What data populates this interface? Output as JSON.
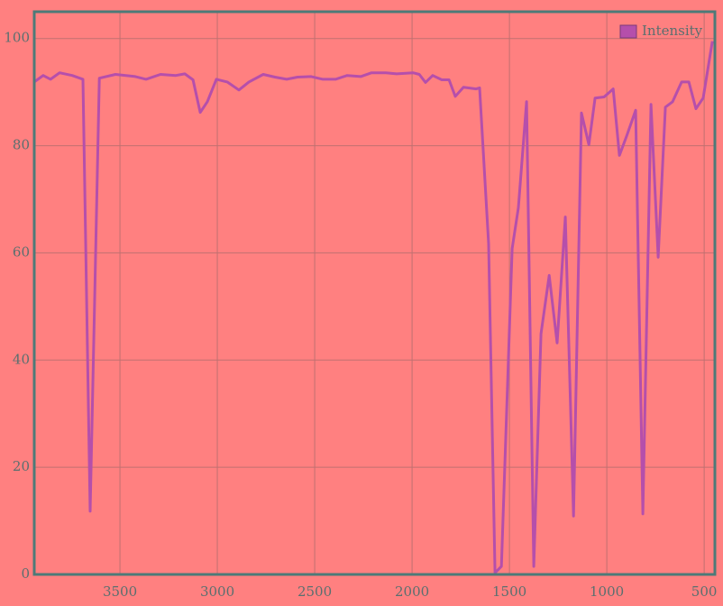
{
  "chart_data": {
    "type": "line",
    "x": [
      3940,
      3894,
      3856,
      3810,
      3745,
      3690,
      3653,
      3606,
      3523,
      3421,
      3366,
      3292,
      3213,
      3167,
      3125,
      3088,
      3051,
      3005,
      2949,
      2889,
      2838,
      2764,
      2704,
      2644,
      2588,
      2518,
      2458,
      2393,
      2333,
      2264,
      2208,
      2134,
      2079,
      1995,
      1963,
      1931,
      1894,
      1847,
      1810,
      1778,
      1736,
      1671,
      1653,
      1607,
      1574,
      1541,
      1486,
      1454,
      1412,
      1375,
      1338,
      1296,
      1255,
      1213,
      1171,
      1130,
      1092,
      1060,
      1014,
      967,
      935,
      898,
      852,
      815,
      773,
      736,
      699,
      662,
      616,
      579,
      542,
      505,
      458
    ],
    "series": [
      {
        "name": "Intensity",
        "color": "#b54fab",
        "values": [
          91.9,
          93.1,
          92.4,
          93.6,
          93.1,
          92.4,
          11.8,
          92.6,
          93.3,
          92.9,
          92.4,
          93.3,
          93.1,
          93.4,
          92.3,
          86.2,
          88.2,
          92.4,
          91.9,
          90.4,
          91.9,
          93.3,
          92.8,
          92.4,
          92.8,
          92.9,
          92.4,
          92.4,
          93.1,
          92.9,
          93.6,
          93.6,
          93.4,
          93.6,
          93.3,
          91.8,
          93.1,
          92.3,
          92.3,
          89.2,
          90.9,
          90.6,
          90.8,
          61.7,
          0.3,
          1.5,
          60.8,
          68.4,
          88.2,
          1.5,
          44.9,
          55.8,
          43.2,
          66.7,
          10.9,
          86.1,
          80.2,
          88.9,
          89.1,
          90.6,
          78.2,
          81.8,
          86.6,
          11.3,
          87.7,
          59.2,
          87.2,
          88.2,
          91.9,
          91.9,
          86.9,
          88.9,
          99.5
        ]
      }
    ],
    "xlim": [
      3940,
      445
    ],
    "ylim": [
      0,
      105
    ],
    "xticks": [
      3500,
      3000,
      2500,
      2000,
      1500,
      1000,
      500
    ],
    "yticks": [
      0,
      20,
      40,
      60,
      80,
      100
    ],
    "grid": true,
    "legend": "upper right"
  }
}
